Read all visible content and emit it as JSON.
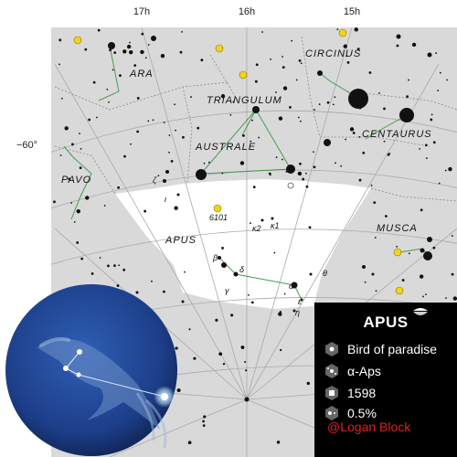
{
  "map": {
    "ra_labels": [
      "17h",
      "16h",
      "15h"
    ],
    "dec_labels": [
      "−60°"
    ],
    "constellations": [
      "ARA",
      "CIRCINUS",
      "TRIANGULUM",
      "AUSTRALE",
      "CENTAURUS",
      "PAVO",
      "APUS",
      "MUSCA"
    ],
    "star_labels": [
      "ζ",
      "ι",
      "6101",
      "κ2",
      "κ1",
      "β",
      "δ",
      "γ",
      "α",
      "θ",
      "ε",
      "η"
    ]
  },
  "info": {
    "title": "APUS",
    "meaning": "Bird of paradise",
    "brightest_star": "α-Aps",
    "year": "1598",
    "sky_area": "0.5%",
    "credit": "@Logan Block"
  },
  "colors": {
    "map_background": "#d9d9d9",
    "apus_region": "#ffffff",
    "figure_lines": "#2f8f3a",
    "info_panel": "#000000",
    "credit_text": "#e0201f",
    "globe": "#1d3f8a"
  }
}
